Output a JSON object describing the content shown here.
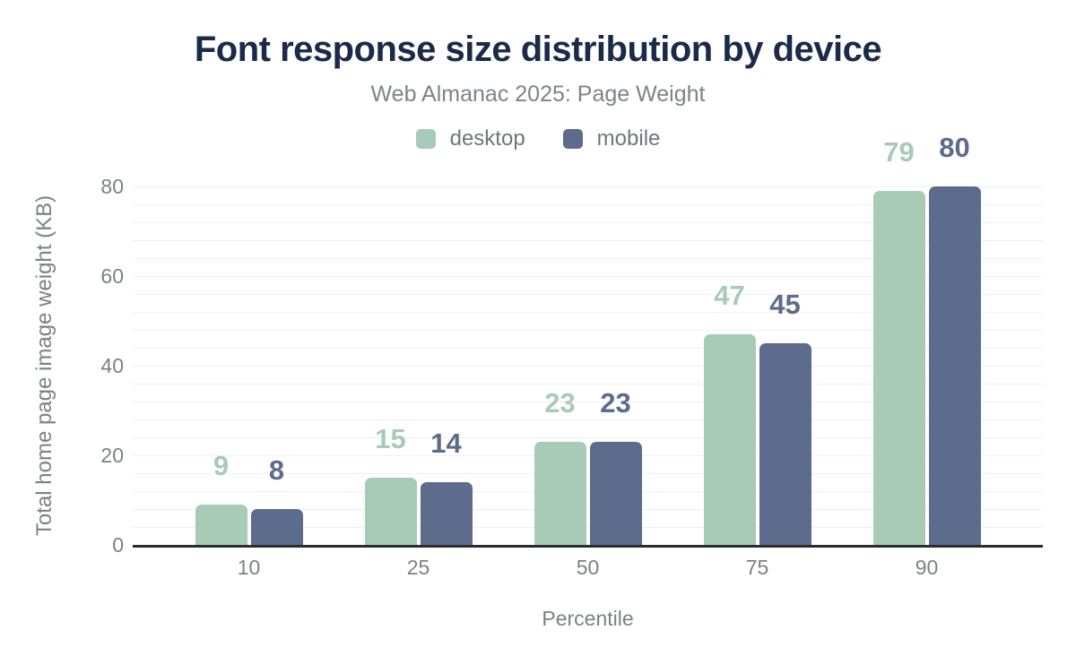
{
  "chart_data": {
    "type": "bar",
    "title": "Font response size distribution by device",
    "subtitle": "Web Almanac 2025: Page Weight",
    "xlabel": "Percentile",
    "ylabel": "Total home page image weight (KB)",
    "categories": [
      "10",
      "25",
      "50",
      "75",
      "90"
    ],
    "series": [
      {
        "name": "desktop",
        "color": "#a8cbb7",
        "values": [
          9,
          15,
          23,
          47,
          79
        ]
      },
      {
        "name": "mobile",
        "color": "#5d6c8c",
        "values": [
          8,
          14,
          23,
          45,
          80
        ]
      }
    ],
    "ylim": [
      0,
      80
    ],
    "yticks": [
      0,
      20,
      40,
      60,
      80
    ],
    "grid": true,
    "gridline_step_kb": 4,
    "legend_position": "top",
    "value_labels_shown": true,
    "colors": {
      "title": "#1b2a4a",
      "subtitle": "#7f8389",
      "axis_text": "#7c8186",
      "legend_text": "#70757c",
      "gridline": "#f0f0f0",
      "axis_line": "#2b2b2b",
      "background": "#ffffff"
    }
  }
}
